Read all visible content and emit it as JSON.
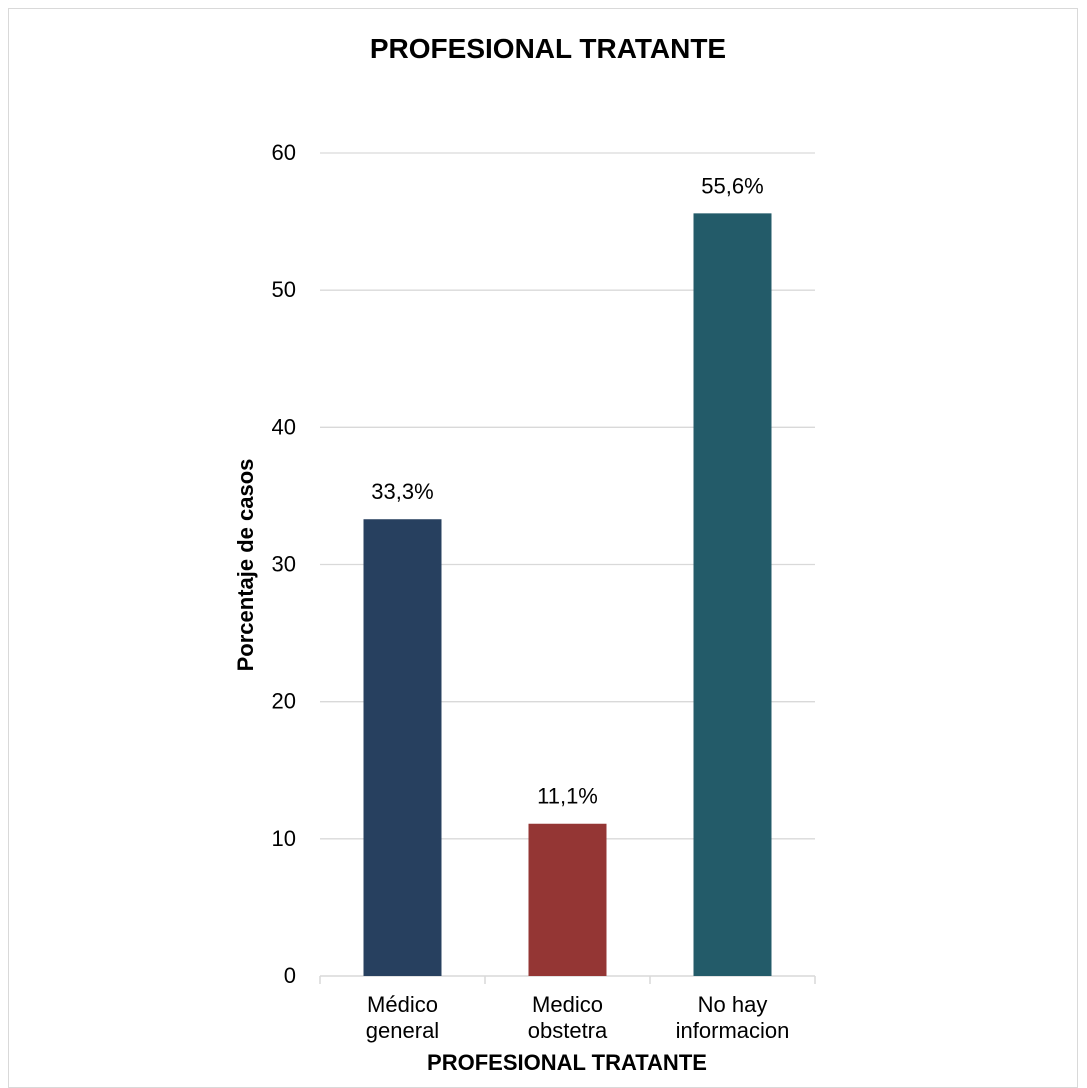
{
  "chart_data": {
    "type": "bar",
    "title": "PROFESIONAL TRATANTE",
    "xlabel": "PROFESIONAL TRATANTE",
    "ylabel": "Porcentaje de casos",
    "categories": [
      [
        "Médico",
        "general"
      ],
      [
        "Medico",
        "obstetra"
      ],
      [
        "No hay",
        "informacion"
      ]
    ],
    "values": [
      33.3,
      11.1,
      55.6
    ],
    "data_labels": [
      "33,3%",
      "11,1%",
      "55,6%"
    ],
    "colors": [
      "#27405f",
      "#943634",
      "#235b69"
    ],
    "ylim": [
      0,
      60
    ],
    "yticks": [
      0,
      10,
      20,
      30,
      40,
      50,
      60
    ],
    "grid": true,
    "gridline_color": "#d9d9d9"
  }
}
